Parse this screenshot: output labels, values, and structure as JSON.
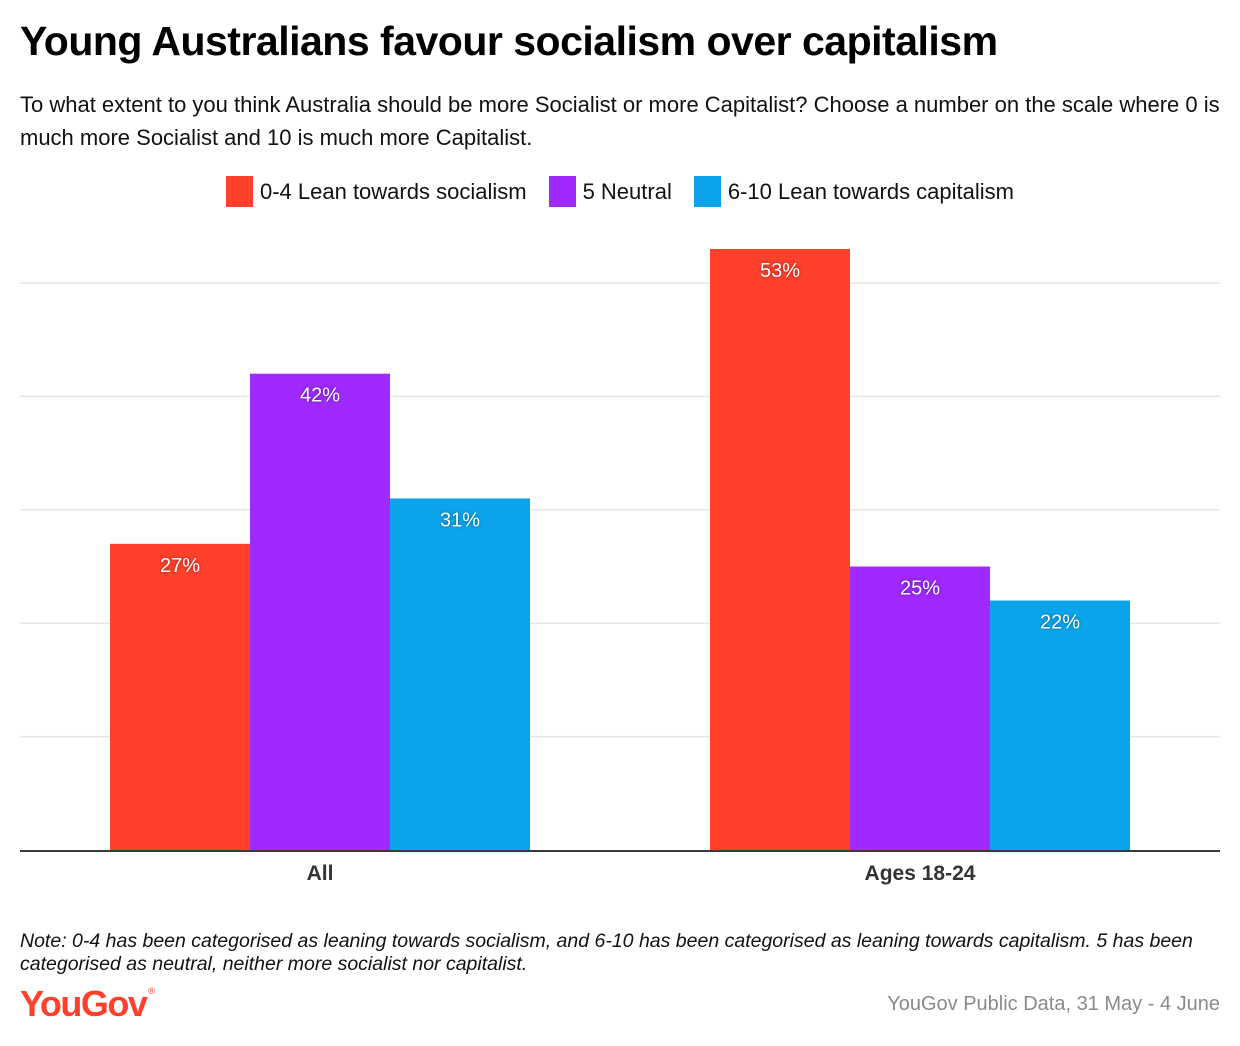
{
  "header": {
    "title": "Young Australians favour socialism over capitalism",
    "subtitle": "To what extent to you think Australia should be more Socialist or more Capitalist? Choose a number on the scale where 0 is much more Socialist and 10 is much more Capitalist."
  },
  "legend": [
    {
      "label": "0-4 Lean towards socialism",
      "color": "#ff412c"
    },
    {
      "label": "5 Neutral",
      "color": "#9f29ff"
    },
    {
      "label": "6-10 Lean towards capitalism",
      "color": "#0ba4eb"
    }
  ],
  "chart_data": {
    "type": "bar",
    "title": "Young Australians favour socialism over capitalism",
    "categories": [
      "All",
      "Ages 18-24"
    ],
    "series": [
      {
        "name": "0-4 Lean towards socialism",
        "color": "#ff412c",
        "values": [
          27,
          53
        ]
      },
      {
        "name": "5 Neutral",
        "color": "#9f29ff",
        "values": [
          42,
          25
        ]
      },
      {
        "name": "6-10 Lean towards capitalism",
        "color": "#0ba4eb",
        "values": [
          31,
          22
        ]
      }
    ],
    "value_suffix": "%",
    "xlabel": "",
    "ylabel": "",
    "ylim": [
      0,
      50
    ],
    "gridlines": [
      10,
      20,
      30,
      40,
      50
    ],
    "grid": true,
    "y_tick_labels_shown": false,
    "legend_position": "top-center"
  },
  "footer": {
    "note": "Note: 0-4 has been categorised as leaning towards socialism, and 6-10 has been categorised as leaning towards capitalism. 5 has been categorised as neutral, neither more socialist nor capitalist.",
    "logo": "YouGov",
    "logo_mark": "®",
    "source": "YouGov Public Data, 31 May - 4 June"
  }
}
